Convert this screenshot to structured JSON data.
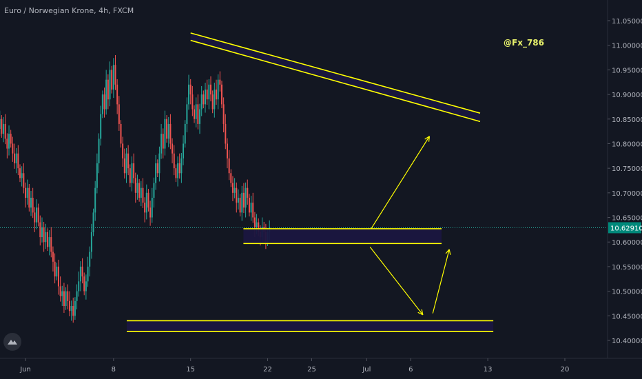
{
  "header": {
    "title": "Euro / Norwegian Krone, 4h, FXCM"
  },
  "annotation": {
    "username": "@Fx_786"
  },
  "colors": {
    "background": "#131722",
    "up_candle": "#26a69a",
    "down_candle": "#ef5350",
    "pattern_line": "#ffff00",
    "zone_fill": "#1a1640",
    "axis_text": "#b2b5be",
    "price_label_bg": "#00897b",
    "current_price_line": "#26a69a"
  },
  "icons": {
    "logo": "tradingview-logo-icon"
  },
  "chart_data": {
    "type": "candlestick",
    "symbol": "EUR/NOK",
    "timeframe": "4h",
    "source": "FXCM",
    "y_range": [
      10.34,
      11.08
    ],
    "y_ticks": [
      "11.05000",
      "11.00000",
      "10.95000",
      "10.90000",
      "10.85000",
      "10.80000",
      "10.75000",
      "10.70000",
      "10.65000",
      "10.60000",
      "10.55000",
      "10.50000",
      "10.45000",
      "10.40000"
    ],
    "y_tick_values": [
      11.05,
      11.0,
      10.95,
      10.9,
      10.85,
      10.8,
      10.75,
      10.7,
      10.65,
      10.6,
      10.55,
      10.5,
      10.45,
      10.4
    ],
    "x_range": [
      -3.0,
      22.0
    ],
    "x_ticks": [
      "Jun",
      "8",
      "15",
      "22",
      "25",
      "Jul",
      "6",
      "13",
      "20"
    ],
    "x_tick_values": [
      0,
      8,
      15,
      22,
      26,
      31,
      35,
      42,
      49
    ],
    "current_price": {
      "value": 10.6291,
      "label": "10.62910"
    },
    "candles_per_day": 6,
    "start_day": -3.0,
    "closes": [
      10.85,
      10.84,
      10.86,
      10.83,
      10.85,
      10.82,
      10.84,
      10.81,
      10.79,
      10.82,
      10.8,
      10.78,
      10.76,
      10.78,
      10.75,
      10.73,
      10.74,
      10.71,
      10.69,
      10.71,
      10.67,
      10.69,
      10.66,
      10.64,
      10.67,
      10.64,
      10.61,
      10.63,
      10.6,
      10.62,
      10.59,
      10.61,
      10.58,
      10.56,
      10.53,
      10.55,
      10.51,
      10.49,
      10.5,
      10.47,
      10.5,
      10.48,
      10.46,
      10.47,
      10.45,
      10.48,
      10.5,
      10.52,
      10.55,
      10.53,
      10.5,
      10.52,
      10.55,
      10.58,
      10.62,
      10.66,
      10.71,
      10.76,
      10.81,
      10.86,
      10.9,
      10.87,
      10.93,
      10.89,
      10.95,
      10.91,
      10.96,
      10.92,
      10.88,
      10.84,
      10.8,
      10.77,
      10.74,
      10.78,
      10.75,
      10.72,
      10.76,
      10.73,
      10.7,
      10.72,
      10.69,
      10.71,
      10.68,
      10.66,
      10.7,
      10.67,
      10.65,
      10.69,
      10.72,
      10.76,
      10.74,
      10.78,
      10.82,
      10.79,
      10.85,
      10.81,
      10.84,
      10.8,
      10.78,
      10.75,
      10.73,
      10.76,
      10.74,
      10.77,
      10.8,
      10.84,
      10.88,
      10.92,
      10.9,
      10.87,
      10.85,
      10.88,
      10.84,
      10.87,
      10.9,
      10.88,
      10.91,
      10.89,
      10.92,
      10.9,
      10.87,
      10.91,
      10.89,
      10.93,
      10.92,
      10.88,
      10.84,
      10.8,
      10.77,
      10.74,
      10.72,
      10.7,
      10.71,
      10.68,
      10.69,
      10.66,
      10.7,
      10.67,
      10.71,
      10.69,
      10.66,
      10.68,
      10.65,
      10.63,
      10.64,
      10.62,
      10.61,
      10.63,
      10.62,
      10.6,
      10.62,
      10.63
    ],
    "pattern": {
      "resistance_trendline_top": [
        [
          15.0,
          11.025
        ],
        [
          41.3,
          10.862
        ]
      ],
      "resistance_trendline_bottom": [
        [
          15.0,
          11.01
        ],
        [
          41.3,
          10.845
        ]
      ],
      "middle_zone": {
        "x": [
          19.8,
          37.8
        ],
        "y": [
          10.597,
          10.627
        ]
      },
      "lower_zone": {
        "x": [
          9.2,
          42.5
        ],
        "y": [
          10.418,
          10.44
        ]
      }
    },
    "projection_arrows": [
      {
        "from": [
          31.4,
          10.627
        ],
        "to": [
          36.7,
          10.815
        ]
      },
      {
        "from": [
          31.3,
          10.59
        ],
        "to": [
          36.1,
          10.452
        ]
      },
      {
        "from": [
          37.0,
          10.455
        ],
        "to": [
          38.5,
          10.585
        ]
      }
    ]
  }
}
